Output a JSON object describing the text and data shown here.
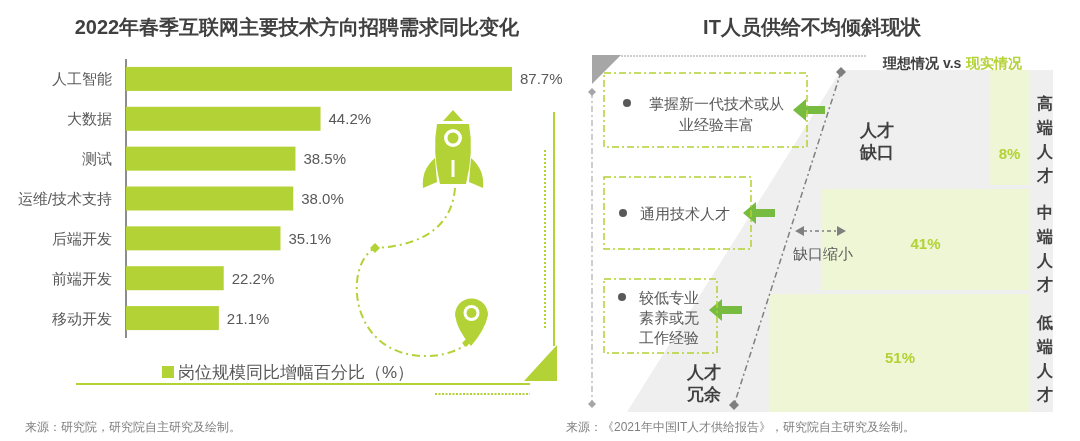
{
  "chart_data": [
    {
      "type": "bar",
      "orientation": "horizontal",
      "title": "2022年春季互联网主要技术方向招聘需求同比变化",
      "categories": [
        "人工智能",
        "大数据",
        "测试",
        "运维/技术支持",
        "后端开发",
        "前端开发",
        "移动开发"
      ],
      "series": [
        {
          "name": "岗位规模同比增幅百分比（%）",
          "color": "#b3d235",
          "values": [
            87.7,
            44.2,
            38.5,
            38.0,
            35.1,
            22.2,
            21.1
          ],
          "value_labels": [
            "87.7%",
            "44.2%",
            "38.5%",
            "38.0%",
            "35.1%",
            "22.2%",
            "21.1%"
          ]
        }
      ],
      "legend": "bottom",
      "annotations": [
        "来源：研究院，研究院自主研究及绘制。"
      ]
    },
    {
      "type": "other",
      "title": "IT人员供给不均倾斜现状",
      "categories": [
        "高端人才",
        "中端人才",
        "低端人才"
      ],
      "values": [
        8,
        41,
        51
      ],
      "value_labels": [
        "8%",
        "41%",
        "51%"
      ],
      "colors": [
        "#eef6d6",
        "#eef6d6",
        "#eef6d6"
      ],
      "annotations": [
        "理想情况 v.s",
        "现实情况",
        "人才缺口",
        "缺口缩小",
        "人才冗余",
        "掌握新一代技术或从业经验丰富",
        "通用技术人才",
        "较低专业素养或无工作经验",
        "来源：《2021年中国IT人才供给报告》，研究院自主研究及绘制。"
      ]
    }
  ]
}
